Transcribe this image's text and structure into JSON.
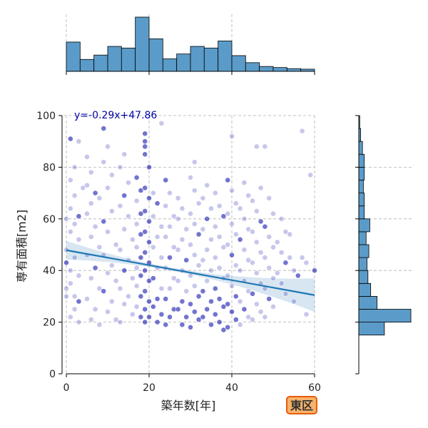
{
  "chart_data": {
    "type": "scatter",
    "xlabel": "築年数[年]",
    "ylabel": "専有面積[m2]",
    "xlim": [
      -1,
      60
    ],
    "ylim": [
      0,
      100
    ],
    "x_ticks": [
      "0",
      "20",
      "40",
      "60"
    ],
    "y_ticks": [
      "0",
      "20",
      "40",
      "60",
      "80",
      "100"
    ],
    "grid": true,
    "regression": {
      "slope": -0.29,
      "intercept": 47.86,
      "label": "y=-0.29x+47.86"
    },
    "badge": "東区",
    "colors": {
      "points": "#0000aa",
      "regression": "#1f77b4",
      "hist": "#5b9bc9",
      "badge_bg": "#f7b26b",
      "badge_border": "#e85b0c"
    },
    "marginal_x_hist": {
      "bin_edges": [
        0,
        3.33,
        6.67,
        10,
        13.33,
        16.67,
        20,
        23.33,
        26.67,
        30,
        33.33,
        36.67,
        40,
        43.33,
        46.67,
        50,
        53.33,
        56.67,
        60
      ],
      "counts": [
        54,
        22,
        30,
        46,
        43,
        100,
        60,
        23,
        32,
        46,
        43,
        56,
        29,
        16,
        9,
        7,
        5,
        4
      ]
    },
    "marginal_y_hist": {
      "bin_edges": [
        15,
        20,
        25,
        30,
        35,
        40,
        45,
        50,
        55,
        60,
        65,
        70,
        75,
        80,
        85,
        90,
        95,
        100
      ],
      "counts": [
        28,
        57,
        20,
        13,
        10,
        9,
        11,
        8,
        12,
        6,
        6,
        5,
        6,
        6,
        4,
        2,
        1
      ]
    },
    "points": [
      [
        1,
        91
      ],
      [
        3,
        90
      ],
      [
        2,
        80
      ],
      [
        1,
        75
      ],
      [
        4,
        72
      ],
      [
        2,
        69
      ],
      [
        1,
        64
      ],
      [
        3,
        61
      ],
      [
        0,
        60
      ],
      [
        2,
        58
      ],
      [
        1,
        55
      ],
      [
        3,
        52
      ],
      [
        0,
        48
      ],
      [
        2,
        45
      ],
      [
        0,
        43
      ],
      [
        1,
        40
      ],
      [
        3,
        38
      ],
      [
        1,
        35
      ],
      [
        0,
        33
      ],
      [
        2,
        30
      ],
      [
        0,
        30
      ],
      [
        3,
        28
      ],
      [
        2,
        25
      ],
      [
        1,
        22
      ],
      [
        3,
        20
      ],
      [
        5,
        84
      ],
      [
        6,
        78
      ],
      [
        5,
        73
      ],
      [
        7,
        70
      ],
      [
        6,
        66
      ],
      [
        5,
        62
      ],
      [
        7,
        57
      ],
      [
        6,
        53
      ],
      [
        8,
        49
      ],
      [
        5,
        46
      ],
      [
        7,
        41
      ],
      [
        6,
        37
      ],
      [
        8,
        33
      ],
      [
        5,
        29
      ],
      [
        7,
        25
      ],
      [
        6,
        21
      ],
      [
        8,
        19
      ],
      [
        9,
        95
      ],
      [
        10,
        88
      ],
      [
        9,
        82
      ],
      [
        11,
        77
      ],
      [
        10,
        72
      ],
      [
        8,
        68
      ],
      [
        11,
        63
      ],
      [
        9,
        59
      ],
      [
        10,
        55
      ],
      [
        12,
        50
      ],
      [
        9,
        46
      ],
      [
        11,
        42
      ],
      [
        10,
        39
      ],
      [
        12,
        36
      ],
      [
        9,
        32
      ],
      [
        11,
        28
      ],
      [
        10,
        24
      ],
      [
        12,
        21
      ],
      [
        14,
        85
      ],
      [
        13,
        80
      ],
      [
        15,
        74
      ],
      [
        14,
        69
      ],
      [
        13,
        65
      ],
      [
        15,
        61
      ],
      [
        14,
        56
      ],
      [
        16,
        52
      ],
      [
        13,
        48
      ],
      [
        15,
        44
      ],
      [
        14,
        40
      ],
      [
        16,
        37
      ],
      [
        13,
        33
      ],
      [
        15,
        30
      ],
      [
        14,
        27
      ],
      [
        16,
        23
      ],
      [
        13,
        20
      ],
      [
        17,
        76
      ],
      [
        18,
        71
      ],
      [
        17,
        67
      ],
      [
        18,
        62
      ],
      [
        17,
        58
      ],
      [
        18,
        54
      ],
      [
        17,
        49
      ],
      [
        18,
        45
      ],
      [
        17,
        41
      ],
      [
        18,
        38
      ],
      [
        17,
        34
      ],
      [
        18,
        30
      ],
      [
        17,
        26
      ],
      [
        18,
        22
      ],
      [
        19,
        93
      ],
      [
        19,
        90
      ],
      [
        19,
        88
      ],
      [
        19,
        85
      ],
      [
        20,
        80
      ],
      [
        19,
        72
      ],
      [
        20,
        68
      ],
      [
        19,
        63
      ],
      [
        20,
        59
      ],
      [
        19,
        55
      ],
      [
        20,
        51
      ],
      [
        19,
        47
      ],
      [
        20,
        43
      ],
      [
        19,
        40
      ],
      [
        20,
        36
      ],
      [
        19,
        32
      ],
      [
        20,
        28
      ],
      [
        19,
        25
      ],
      [
        20,
        22
      ],
      [
        19,
        20
      ],
      [
        21,
        70
      ],
      [
        22,
        66
      ],
      [
        21,
        61
      ],
      [
        23,
        57
      ],
      [
        22,
        53
      ],
      [
        21,
        49
      ],
      [
        23,
        45
      ],
      [
        22,
        41
      ],
      [
        21,
        37
      ],
      [
        23,
        33
      ],
      [
        22,
        29
      ],
      [
        21,
        26
      ],
      [
        23,
        23
      ],
      [
        22,
        20
      ],
      [
        23,
        97
      ],
      [
        24,
        75
      ],
      [
        25,
        70
      ],
      [
        24,
        65
      ],
      [
        26,
        61
      ],
      [
        25,
        57
      ],
      [
        24,
        53
      ],
      [
        26,
        49
      ],
      [
        25,
        45
      ],
      [
        24,
        41
      ],
      [
        26,
        37
      ],
      [
        25,
        33
      ],
      [
        24,
        29
      ],
      [
        26,
        25
      ],
      [
        25,
        22
      ],
      [
        24,
        19
      ],
      [
        27,
        68
      ],
      [
        28,
        64
      ],
      [
        27,
        60
      ],
      [
        29,
        56
      ],
      [
        28,
        52
      ],
      [
        27,
        48
      ],
      [
        29,
        44
      ],
      [
        28,
        40
      ],
      [
        27,
        36
      ],
      [
        29,
        32
      ],
      [
        28,
        28
      ],
      [
        27,
        25
      ],
      [
        29,
        22
      ],
      [
        28,
        19
      ],
      [
        31,
        82
      ],
      [
        30,
        76
      ],
      [
        31,
        71
      ],
      [
        32,
        66
      ],
      [
        30,
        62
      ],
      [
        31,
        58
      ],
      [
        32,
        54
      ],
      [
        30,
        50
      ],
      [
        31,
        46
      ],
      [
        32,
        42
      ],
      [
        30,
        38
      ],
      [
        31,
        34
      ],
      [
        32,
        30
      ],
      [
        30,
        27
      ],
      [
        31,
        24
      ],
      [
        32,
        21
      ],
      [
        30,
        18
      ],
      [
        34,
        73
      ],
      [
        33,
        68
      ],
      [
        35,
        64
      ],
      [
        34,
        60
      ],
      [
        33,
        56
      ],
      [
        35,
        52
      ],
      [
        34,
        48
      ],
      [
        33,
        44
      ],
      [
        35,
        40
      ],
      [
        34,
        36
      ],
      [
        33,
        32
      ],
      [
        35,
        28
      ],
      [
        34,
        25
      ],
      [
        33,
        22
      ],
      [
        35,
        19
      ],
      [
        36,
        70
      ],
      [
        37,
        65
      ],
      [
        38,
        61
      ],
      [
        36,
        57
      ],
      [
        37,
        53
      ],
      [
        38,
        49
      ],
      [
        36,
        45
      ],
      [
        37,
        41
      ],
      [
        38,
        37
      ],
      [
        36,
        33
      ],
      [
        37,
        29
      ],
      [
        38,
        26
      ],
      [
        36,
        23
      ],
      [
        37,
        20
      ],
      [
        38,
        17
      ],
      [
        40,
        92
      ],
      [
        39,
        75
      ],
      [
        40,
        71
      ],
      [
        41,
        66
      ],
      [
        39,
        62
      ],
      [
        40,
        58
      ],
      [
        41,
        54
      ],
      [
        39,
        50
      ],
      [
        40,
        46
      ],
      [
        41,
        42
      ],
      [
        39,
        38
      ],
      [
        40,
        34
      ],
      [
        41,
        30
      ],
      [
        39,
        27
      ],
      [
        40,
        24
      ],
      [
        41,
        21
      ],
      [
        39,
        18
      ],
      [
        43,
        74
      ],
      [
        44,
        69
      ],
      [
        42,
        64
      ],
      [
        43,
        60
      ],
      [
        44,
        56
      ],
      [
        42,
        52
      ],
      [
        43,
        48
      ],
      [
        44,
        44
      ],
      [
        42,
        40
      ],
      [
        43,
        36
      ],
      [
        44,
        32
      ],
      [
        42,
        28
      ],
      [
        43,
        25
      ],
      [
        44,
        22
      ],
      [
        42,
        19
      ],
      [
        46,
        88
      ],
      [
        47,
        72
      ],
      [
        45,
        67
      ],
      [
        46,
        63
      ],
      [
        47,
        59
      ],
      [
        45,
        55
      ],
      [
        46,
        51
      ],
      [
        47,
        47
      ],
      [
        45,
        43
      ],
      [
        46,
        39
      ],
      [
        47,
        35
      ],
      [
        45,
        31
      ],
      [
        46,
        27
      ],
      [
        47,
        24
      ],
      [
        45,
        21
      ],
      [
        48,
        88
      ],
      [
        49,
        68
      ],
      [
        50,
        62
      ],
      [
        48,
        57
      ],
      [
        49,
        53
      ],
      [
        50,
        49
      ],
      [
        48,
        45
      ],
      [
        49,
        41
      ],
      [
        50,
        37
      ],
      [
        48,
        33
      ],
      [
        49,
        29
      ],
      [
        50,
        26
      ],
      [
        48,
        22
      ],
      [
        52,
        60
      ],
      [
        53,
        55
      ],
      [
        51,
        51
      ],
      [
        52,
        47
      ],
      [
        53,
        43
      ],
      [
        51,
        39
      ],
      [
        52,
        35
      ],
      [
        53,
        31
      ],
      [
        54,
        54
      ],
      [
        54,
        45
      ],
      [
        55,
        40
      ],
      [
        56,
        38
      ],
      [
        55,
        28
      ],
      [
        57,
        94
      ],
      [
        57,
        45
      ],
      [
        58,
        43
      ],
      [
        59,
        77
      ],
      [
        58,
        23
      ],
      [
        60,
        40
      ]
    ]
  }
}
